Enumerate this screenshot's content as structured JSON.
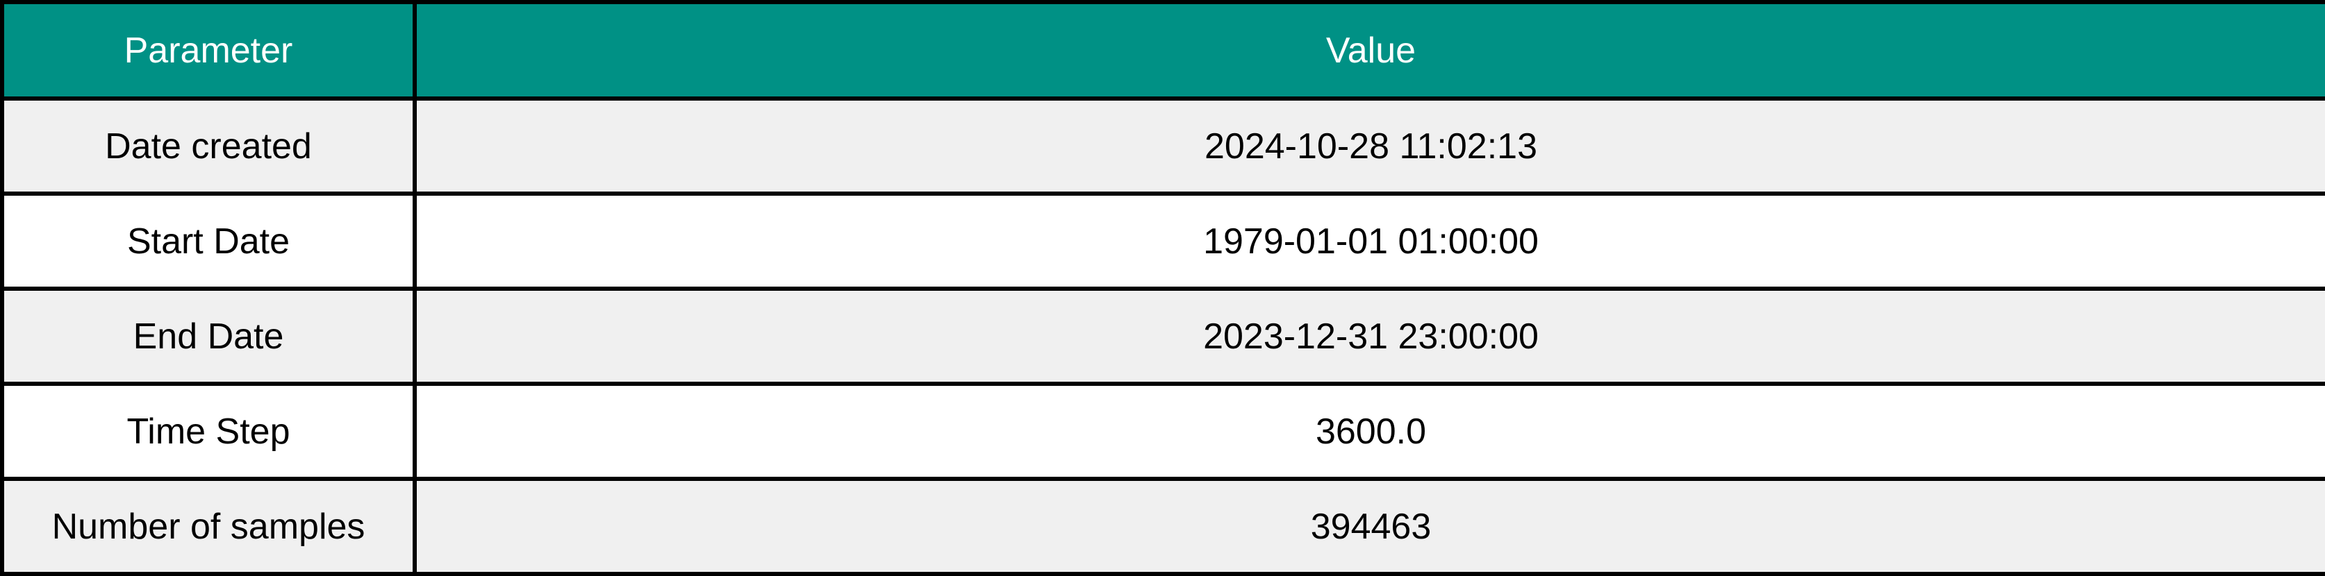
{
  "header": {
    "parameter": "Parameter",
    "value": "Value"
  },
  "rows": [
    {
      "parameter": "Date created",
      "value": "2024-10-28 11:02:13"
    },
    {
      "parameter": "Start Date",
      "value": "1979-01-01 01:00:00"
    },
    {
      "parameter": "End Date",
      "value": "2023-12-31 23:00:00"
    },
    {
      "parameter": "Time Step",
      "value": "3600.0"
    },
    {
      "parameter": "Number of samples",
      "value": "394463"
    }
  ],
  "colors": {
    "header_bg": "#009185",
    "header_text": "#ffffff",
    "row_shaded": "#f0f0f0",
    "row_plain": "#ffffff",
    "border": "#000000"
  }
}
